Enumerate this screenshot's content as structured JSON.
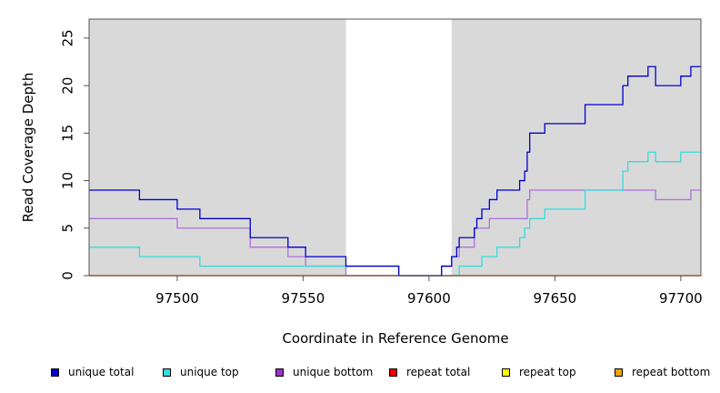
{
  "chart_data": {
    "type": "line",
    "title": "",
    "xlabel": "Coordinate in Reference Genome",
    "ylabel": "Read Coverage Depth",
    "xlim": [
      97465,
      97708
    ],
    "ylim": [
      0,
      27
    ],
    "x_ticks": [
      97500,
      97550,
      97600,
      97650,
      97700
    ],
    "y_ticks": [
      0,
      5,
      10,
      15,
      20,
      25
    ],
    "shaded_regions": [
      [
        97465,
        97567
      ],
      [
        97609,
        97708
      ]
    ],
    "legend_position": "bottom",
    "series": [
      {
        "name": "unique total",
        "color": "#0000cc",
        "points": [
          [
            97465,
            9
          ],
          [
            97485,
            8
          ],
          [
            97500,
            7
          ],
          [
            97509,
            6
          ],
          [
            97529,
            4
          ],
          [
            97544,
            3
          ],
          [
            97551,
            2
          ],
          [
            97567,
            1
          ],
          [
            97588,
            0
          ],
          [
            97605,
            1
          ],
          [
            97609,
            2
          ],
          [
            97611,
            3
          ],
          [
            97612,
            4
          ],
          [
            97618,
            5
          ],
          [
            97619,
            6
          ],
          [
            97621,
            7
          ],
          [
            97624,
            8
          ],
          [
            97627,
            9
          ],
          [
            97636,
            10
          ],
          [
            97638,
            11
          ],
          [
            97639,
            13
          ],
          [
            97640,
            15
          ],
          [
            97646,
            16
          ],
          [
            97662,
            18
          ],
          [
            97677,
            20
          ],
          [
            97679,
            21
          ],
          [
            97687,
            22
          ],
          [
            97690,
            20
          ],
          [
            97700,
            21
          ],
          [
            97704,
            22
          ],
          [
            97708,
            22
          ]
        ]
      },
      {
        "name": "unique top",
        "color": "#33dddd",
        "points": [
          [
            97465,
            3
          ],
          [
            97485,
            2
          ],
          [
            97509,
            1
          ],
          [
            97567,
            1
          ],
          [
            97588,
            0
          ],
          [
            97609,
            0
          ],
          [
            97612,
            1
          ],
          [
            97621,
            2
          ],
          [
            97627,
            3
          ],
          [
            97636,
            4
          ],
          [
            97638,
            5
          ],
          [
            97640,
            6
          ],
          [
            97646,
            7
          ],
          [
            97662,
            9
          ],
          [
            97677,
            11
          ],
          [
            97679,
            12
          ],
          [
            97687,
            13
          ],
          [
            97690,
            12
          ],
          [
            97700,
            13
          ],
          [
            97708,
            13
          ]
        ]
      },
      {
        "name": "unique bottom",
        "color": "#b070e0",
        "points": [
          [
            97465,
            6
          ],
          [
            97500,
            5
          ],
          [
            97529,
            3
          ],
          [
            97544,
            2
          ],
          [
            97551,
            1
          ],
          [
            97567,
            0
          ],
          [
            97605,
            1
          ],
          [
            97609,
            2
          ],
          [
            97612,
            3
          ],
          [
            97618,
            5
          ],
          [
            97624,
            6
          ],
          [
            97639,
            8
          ],
          [
            97640,
            9
          ],
          [
            97690,
            8
          ],
          [
            97704,
            9
          ],
          [
            97708,
            9
          ]
        ]
      },
      {
        "name": "repeat total",
        "color": "#ee0000",
        "points": [
          [
            97465,
            0
          ],
          [
            97708,
            0
          ]
        ]
      },
      {
        "name": "repeat top",
        "color": "#ffff00",
        "points": [
          [
            97465,
            0
          ],
          [
            97708,
            0
          ]
        ]
      },
      {
        "name": "repeat bottom",
        "color": "#f5a000",
        "points": [
          [
            97465,
            0
          ],
          [
            97708,
            0
          ]
        ]
      }
    ]
  }
}
